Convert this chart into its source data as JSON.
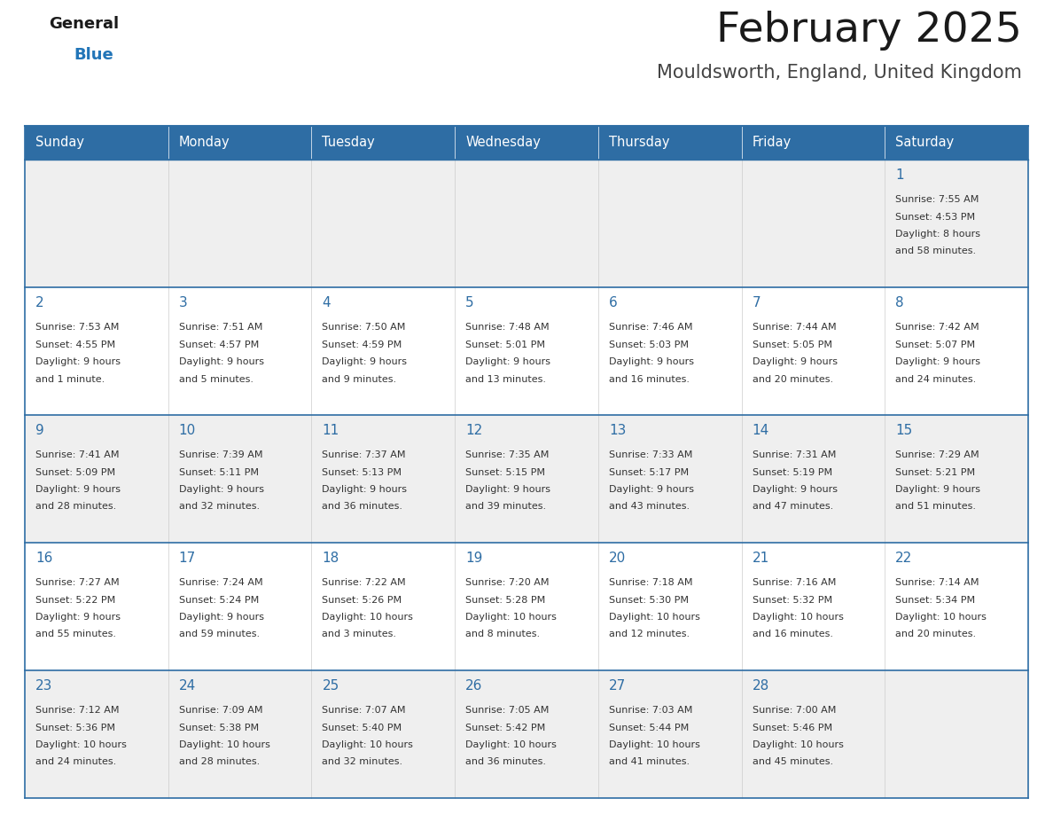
{
  "title": "February 2025",
  "subtitle": "Mouldsworth, England, United Kingdom",
  "days_of_week": [
    "Sunday",
    "Monday",
    "Tuesday",
    "Wednesday",
    "Thursday",
    "Friday",
    "Saturday"
  ],
  "header_bg": "#2E6DA4",
  "header_text_color": "#FFFFFF",
  "cell_bg_odd": "#EFEFEF",
  "cell_bg_even": "#FFFFFF",
  "cell_border_color": "#2E6DA4",
  "day_number_color": "#2E6DA4",
  "cell_text_color": "#333333",
  "title_color": "#1a1a1a",
  "subtitle_color": "#444444",
  "logo_general_color": "#1a1a1a",
  "logo_blue_color": "#2275b8",
  "fig_width": 11.88,
  "fig_height": 9.18,
  "dpi": 100,
  "calendar_data": [
    [
      {
        "day": null
      },
      {
        "day": null
      },
      {
        "day": null
      },
      {
        "day": null
      },
      {
        "day": null
      },
      {
        "day": null
      },
      {
        "day": 1,
        "sunrise": "7:55 AM",
        "sunset": "4:53 PM",
        "daylight": "8 hours and 58 minutes."
      }
    ],
    [
      {
        "day": 2,
        "sunrise": "7:53 AM",
        "sunset": "4:55 PM",
        "daylight": "9 hours and 1 minute."
      },
      {
        "day": 3,
        "sunrise": "7:51 AM",
        "sunset": "4:57 PM",
        "daylight": "9 hours and 5 minutes."
      },
      {
        "day": 4,
        "sunrise": "7:50 AM",
        "sunset": "4:59 PM",
        "daylight": "9 hours and 9 minutes."
      },
      {
        "day": 5,
        "sunrise": "7:48 AM",
        "sunset": "5:01 PM",
        "daylight": "9 hours and 13 minutes."
      },
      {
        "day": 6,
        "sunrise": "7:46 AM",
        "sunset": "5:03 PM",
        "daylight": "9 hours and 16 minutes."
      },
      {
        "day": 7,
        "sunrise": "7:44 AM",
        "sunset": "5:05 PM",
        "daylight": "9 hours and 20 minutes."
      },
      {
        "day": 8,
        "sunrise": "7:42 AM",
        "sunset": "5:07 PM",
        "daylight": "9 hours and 24 minutes."
      }
    ],
    [
      {
        "day": 9,
        "sunrise": "7:41 AM",
        "sunset": "5:09 PM",
        "daylight": "9 hours and 28 minutes."
      },
      {
        "day": 10,
        "sunrise": "7:39 AM",
        "sunset": "5:11 PM",
        "daylight": "9 hours and 32 minutes."
      },
      {
        "day": 11,
        "sunrise": "7:37 AM",
        "sunset": "5:13 PM",
        "daylight": "9 hours and 36 minutes."
      },
      {
        "day": 12,
        "sunrise": "7:35 AM",
        "sunset": "5:15 PM",
        "daylight": "9 hours and 39 minutes."
      },
      {
        "day": 13,
        "sunrise": "7:33 AM",
        "sunset": "5:17 PM",
        "daylight": "9 hours and 43 minutes."
      },
      {
        "day": 14,
        "sunrise": "7:31 AM",
        "sunset": "5:19 PM",
        "daylight": "9 hours and 47 minutes."
      },
      {
        "day": 15,
        "sunrise": "7:29 AM",
        "sunset": "5:21 PM",
        "daylight": "9 hours and 51 minutes."
      }
    ],
    [
      {
        "day": 16,
        "sunrise": "7:27 AM",
        "sunset": "5:22 PM",
        "daylight": "9 hours and 55 minutes."
      },
      {
        "day": 17,
        "sunrise": "7:24 AM",
        "sunset": "5:24 PM",
        "daylight": "9 hours and 59 minutes."
      },
      {
        "day": 18,
        "sunrise": "7:22 AM",
        "sunset": "5:26 PM",
        "daylight": "10 hours and 3 minutes."
      },
      {
        "day": 19,
        "sunrise": "7:20 AM",
        "sunset": "5:28 PM",
        "daylight": "10 hours and 8 minutes."
      },
      {
        "day": 20,
        "sunrise": "7:18 AM",
        "sunset": "5:30 PM",
        "daylight": "10 hours and 12 minutes."
      },
      {
        "day": 21,
        "sunrise": "7:16 AM",
        "sunset": "5:32 PM",
        "daylight": "10 hours and 16 minutes."
      },
      {
        "day": 22,
        "sunrise": "7:14 AM",
        "sunset": "5:34 PM",
        "daylight": "10 hours and 20 minutes."
      }
    ],
    [
      {
        "day": 23,
        "sunrise": "7:12 AM",
        "sunset": "5:36 PM",
        "daylight": "10 hours and 24 minutes."
      },
      {
        "day": 24,
        "sunrise": "7:09 AM",
        "sunset": "5:38 PM",
        "daylight": "10 hours and 28 minutes."
      },
      {
        "day": 25,
        "sunrise": "7:07 AM",
        "sunset": "5:40 PM",
        "daylight": "10 hours and 32 minutes."
      },
      {
        "day": 26,
        "sunrise": "7:05 AM",
        "sunset": "5:42 PM",
        "daylight": "10 hours and 36 minutes."
      },
      {
        "day": 27,
        "sunrise": "7:03 AM",
        "sunset": "5:44 PM",
        "daylight": "10 hours and 41 minutes."
      },
      {
        "day": 28,
        "sunrise": "7:00 AM",
        "sunset": "5:46 PM",
        "daylight": "10 hours and 45 minutes."
      },
      {
        "day": null
      }
    ]
  ]
}
